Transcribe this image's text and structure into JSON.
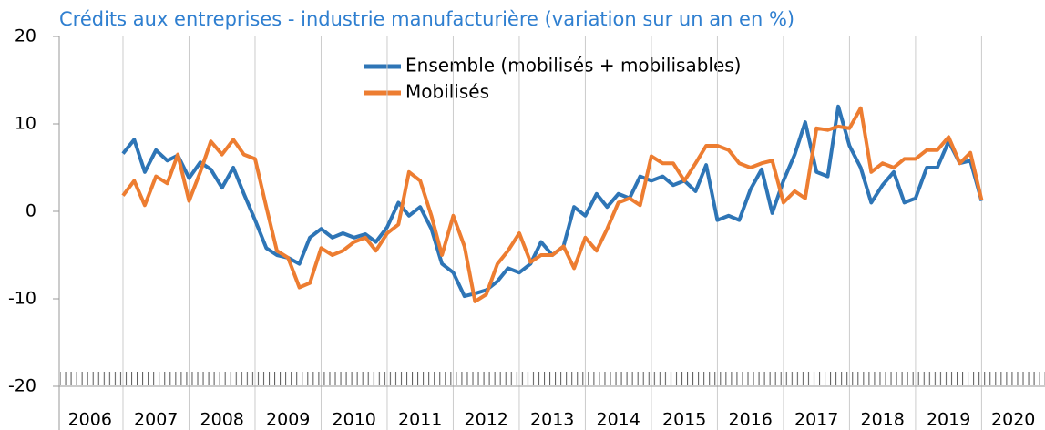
{
  "chart_data": {
    "type": "line",
    "title": "Crédits aux entreprises - industrie manufacturière (variation sur un an en %)",
    "x": [
      2007,
      2007.17,
      2007.33,
      2007.5,
      2007.67,
      2007.83,
      2008,
      2008.17,
      2008.33,
      2008.5,
      2008.67,
      2008.83,
      2009,
      2009.17,
      2009.33,
      2009.5,
      2009.67,
      2009.83,
      2010,
      2010.17,
      2010.33,
      2010.5,
      2010.67,
      2010.83,
      2011,
      2011.17,
      2011.33,
      2011.5,
      2011.67,
      2011.83,
      2012,
      2012.17,
      2012.33,
      2012.5,
      2012.67,
      2012.83,
      2013,
      2013.17,
      2013.33,
      2013.5,
      2013.67,
      2013.83,
      2014,
      2014.17,
      2014.33,
      2014.5,
      2014.67,
      2014.83,
      2015,
      2015.17,
      2015.33,
      2015.5,
      2015.67,
      2015.83,
      2016,
      2016.17,
      2016.33,
      2016.5,
      2016.67,
      2016.83,
      2017,
      2017.17,
      2017.33,
      2017.5,
      2017.67,
      2017.83,
      2018,
      2018.17,
      2018.33,
      2018.5,
      2018.67,
      2018.83,
      2019,
      2019.17,
      2019.33,
      2019.5,
      2019.67,
      2019.83,
      2020
    ],
    "series": [
      {
        "name": "Ensemble (mobilisés + mobilisables)",
        "color": "#2e75b6",
        "values": [
          6.6,
          8.2,
          4.5,
          7,
          5.8,
          6.4,
          3.8,
          5.6,
          4.8,
          2.7,
          5,
          2,
          -1,
          -4.2,
          -5,
          -5.3,
          -6,
          -3,
          -2,
          -3,
          -2.5,
          -3,
          -2.6,
          -3.5,
          -1.8,
          1,
          -0.5,
          0.5,
          -2,
          -6,
          -7,
          -9.7,
          -9.4,
          -9,
          -8,
          -6.5,
          -7,
          -6,
          -3.5,
          -5,
          -4,
          0.5,
          -0.5,
          2,
          0.5,
          2,
          1.5,
          4,
          3.5,
          4,
          3,
          3.5,
          2.3,
          5.3,
          -1,
          -0.5,
          -1,
          2.5,
          4.8,
          -0.2,
          3.5,
          6.5,
          10.2,
          4.5,
          4,
          12,
          7.5,
          5,
          1,
          3,
          4.5,
          1,
          1.5,
          5,
          5,
          8,
          5.5,
          5.8,
          1.2
        ]
      },
      {
        "name": "Mobilisés",
        "color": "#ed7d31",
        "values": [
          1.8,
          3.5,
          0.7,
          4,
          3.2,
          6.5,
          1.2,
          4.5,
          8,
          6.5,
          8.2,
          6.5,
          6,
          0.5,
          -4.5,
          -5.3,
          -8.7,
          -8.2,
          -4.2,
          -5,
          -4.5,
          -3.5,
          -3,
          -4.5,
          -2.5,
          -1.5,
          4.5,
          3.5,
          -0.5,
          -5,
          -0.5,
          -4,
          -10.3,
          -9.5,
          -6,
          -4.5,
          -2.5,
          -5.8,
          -5,
          -5,
          -4,
          -6.5,
          -3,
          -4.5,
          -2,
          1,
          1.5,
          0.7,
          6.3,
          5.5,
          5.5,
          3.5,
          5.5,
          7.5,
          7.5,
          7,
          5.5,
          5,
          5.5,
          5.8,
          1,
          2.3,
          1.5,
          9.5,
          9.3,
          9.7,
          9.5,
          11.8,
          4.5,
          5.5,
          5,
          6,
          6,
          7,
          7,
          8.5,
          5.5,
          6.7,
          1.3
        ]
      }
    ],
    "categories": [
      "2006",
      "2007",
      "2008",
      "2009",
      "2010",
      "2011",
      "2012",
      "2013",
      "2014",
      "2015",
      "2016",
      "2017",
      "2018",
      "2019",
      "2020"
    ],
    "xlim": [
      2006,
      2020.96
    ],
    "xticks": [
      2006,
      2007,
      2008,
      2009,
      2010,
      2011,
      2012,
      2013,
      2014,
      2015,
      2016,
      2017,
      2018,
      2019,
      2020
    ],
    "ylim": [
      -20,
      20
    ],
    "yticks": [
      -20,
      -10,
      0,
      10,
      20
    ]
  }
}
